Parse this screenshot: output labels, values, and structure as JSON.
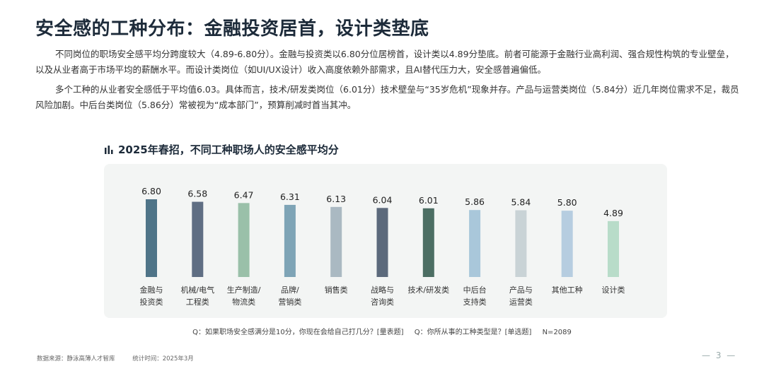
{
  "title": "安全感的工种分布：金融投资居首，设计类垫底",
  "paragraphs": [
    "不同岗位的职场安全感平均分跨度较大（4.89-6.80分）。金融与投资类以6.80分位居榜首，设计类以4.89分垫底。前者可能源于金融行业高利润、强合规性构筑的专业壁垒，以及从业者高于市场平均的薪酬水平。而设计类岗位（如UI/UX设计）收入高度依赖外部需求，且AI替代压力大，安全感普遍偏低。",
    "多个工种的从业者安全感低于平均值6.03。具体而言，技术/研发类岗位（6.01分）技术壁垒与“35岁危机”现象并存。产品与运营类岗位（5.84分）近几年岗位需求不足，裁员风险加剧。中后台类岗位（5.86分）常被视为“成本部门”，预算削减时首当其冲。"
  ],
  "chart_title": "2025年春招，不同工种职场人的安全感平均分",
  "chart_data": {
    "type": "bar",
    "title": "2025年春招，不同工种职场人的安全感平均分",
    "categories": [
      [
        "金融与",
        "投资类"
      ],
      [
        "机械/电气",
        "工程类"
      ],
      [
        "生产制造/",
        "物流类"
      ],
      [
        "品牌/",
        "营销类"
      ],
      [
        "销售类"
      ],
      [
        "战略与",
        "咨询类"
      ],
      [
        "技术/研发类"
      ],
      [
        "中后台",
        "支持类"
      ],
      [
        "产品与",
        "运营类"
      ],
      [
        "其他工种"
      ],
      [
        "设计类"
      ]
    ],
    "values": [
      6.8,
      6.58,
      6.47,
      6.31,
      6.13,
      6.04,
      6.01,
      5.86,
      5.84,
      5.8,
      4.89
    ],
    "value_labels": [
      "6.80",
      "6.58",
      "6.47",
      "6.31",
      "6.13",
      "6.04",
      "6.01",
      "5.86",
      "5.84",
      "5.80",
      "4.89"
    ],
    "colors": [
      "#4f7488",
      "#5f6e83",
      "#9ac0a9",
      "#7ea4b6",
      "#aab9c2",
      "#5c6a7c",
      "#4c6e63",
      "#a9c7da",
      "#c9d3d6",
      "#b6cde0",
      "#b8dcc9"
    ],
    "ylim": [
      0,
      6.8
    ],
    "grid": false,
    "legend": "none"
  },
  "footnote": {
    "q1": "Q：如果职场安全感满分是10分，你现在会给自己打几分？[量表题]",
    "q2": "Q：你所从事的工种类型是？[单选题]",
    "n": "N=2089"
  },
  "source": {
    "data_source": "数据来源：静泳高薄人才智库",
    "time": "统计时间：2025年3月"
  },
  "page_number": "— 3 —"
}
